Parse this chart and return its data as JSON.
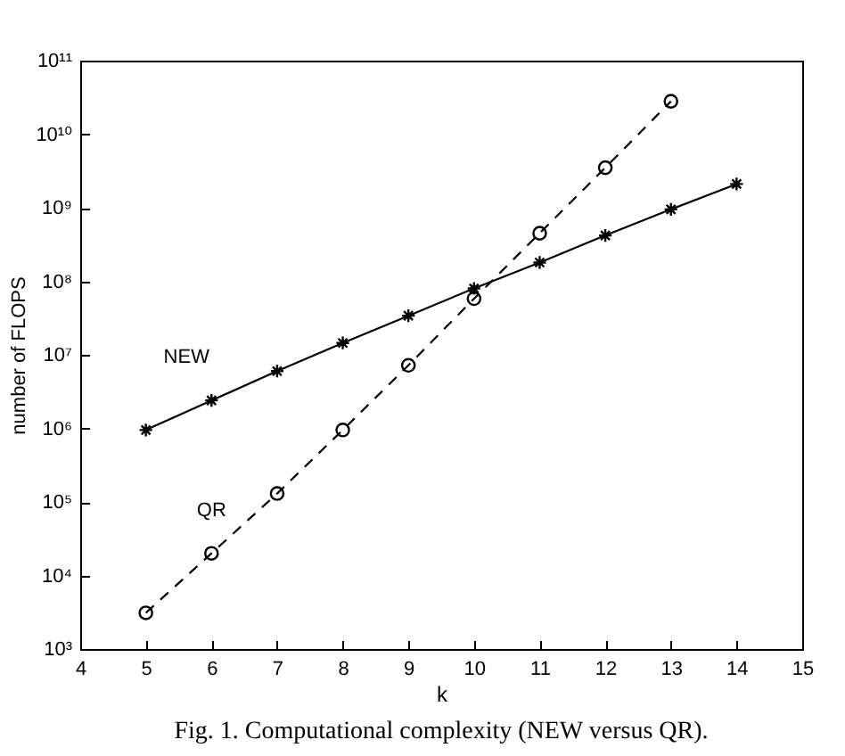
{
  "chart_data": {
    "type": "line",
    "xlabel": "k",
    "ylabel": "number of FLOPS",
    "annotations": [
      "Fig. 1.  Computational complexity (NEW versus QR)."
    ],
    "x": [
      5,
      6,
      7,
      8,
      9,
      10,
      11,
      12,
      13,
      14
    ],
    "series": [
      {
        "name": "NEW",
        "color": "#000000",
        "marker": "cross",
        "line_style": "solid",
        "values": [
          950000,
          2400000,
          6000000,
          14500000,
          34000000,
          80000000,
          180000000,
          420000000,
          950000000,
          2100000000
        ]
      },
      {
        "name": "QR",
        "color": "#000000",
        "marker": "circle",
        "line_style": "dashed",
        "x": [
          5,
          6,
          7,
          8,
          9,
          10,
          11,
          12,
          13
        ],
        "values": [
          3100,
          20000,
          130000,
          950000,
          7200000,
          58000000,
          450000000,
          3500000000,
          28000000000
        ]
      }
    ],
    "log": "y",
    "grid": false,
    "xlim": [
      4,
      15
    ],
    "xticks": [
      4,
      5,
      6,
      7,
      8,
      9,
      10,
      11,
      12,
      13,
      14,
      15
    ],
    "ylim": [
      1000,
      100000000000
    ],
    "yticks": [
      {
        "value": 1000,
        "label": "10³"
      },
      {
        "value": 10000,
        "label": "10⁴"
      },
      {
        "value": 100000,
        "label": "10⁵"
      },
      {
        "value": 1000000,
        "label": "10⁶"
      },
      {
        "value": 10000000,
        "label": "10⁷"
      },
      {
        "value": 100000000,
        "label": "10⁸"
      },
      {
        "value": 1000000000,
        "label": "10⁹"
      },
      {
        "value": 10000000000,
        "label": "10¹⁰"
      },
      {
        "value": 100000000000,
        "label": "10¹¹"
      }
    ]
  }
}
